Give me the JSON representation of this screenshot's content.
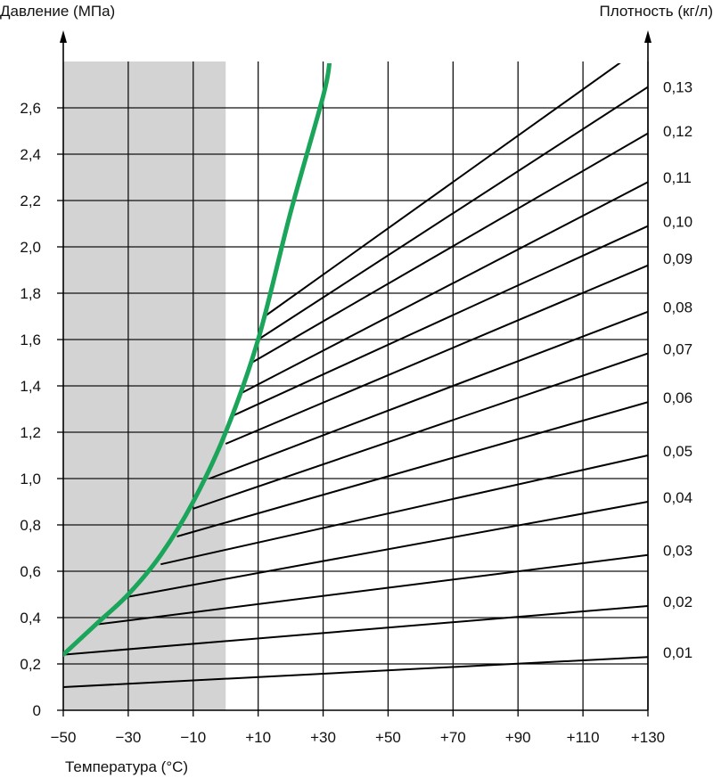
{
  "chart_data": {
    "type": "line",
    "ylabel": "Давление (МПа)",
    "y2label": "Плотность (кг/л)",
    "xlabel": "Температура (°C)",
    "xlim": [
      -50,
      130
    ],
    "ylim": [
      0,
      2.8
    ],
    "x_ticks": [
      "−50",
      "−30",
      "−10",
      "+10",
      "+30",
      "+50",
      "+70",
      "+90",
      "+110",
      "+130"
    ],
    "x_tick_values": [
      -50,
      -30,
      -10,
      10,
      30,
      50,
      70,
      90,
      110,
      130
    ],
    "y_ticks": [
      "0",
      "0,2",
      "0,4",
      "0,6",
      "0,8",
      "1,0",
      "1,2",
      "1,4",
      "1,6",
      "1,8",
      "2,0",
      "2,2",
      "2,4",
      "2,6"
    ],
    "y_tick_values": [
      0,
      0.2,
      0.4,
      0.6,
      0.8,
      1.0,
      1.2,
      1.4,
      1.6,
      1.8,
      2.0,
      2.2,
      2.4,
      2.6
    ],
    "grid": true,
    "shaded_region": {
      "x": [
        -50,
        0
      ],
      "color": "#d3d3d3"
    },
    "saturation_curve": {
      "color": "#1aa55a",
      "x": [
        -50,
        -40,
        -30,
        -20,
        -10,
        0,
        10,
        20,
        30,
        32
      ],
      "y": [
        0.24,
        0.37,
        0.5,
        0.67,
        0.9,
        1.2,
        1.6,
        2.15,
        2.65,
        2.8
      ]
    },
    "density_lines": [
      {
        "density": "0,01",
        "start": [
          -50,
          0.1
        ],
        "end": [
          130,
          0.23
        ]
      },
      {
        "density": "0,02",
        "start": [
          -50,
          0.24
        ],
        "end": [
          130,
          0.45
        ]
      },
      {
        "density": "0,03",
        "start": [
          -40,
          0.37
        ],
        "end": [
          130,
          0.67
        ]
      },
      {
        "density": "0,04",
        "start": [
          -30,
          0.49
        ],
        "end": [
          130,
          0.9
        ]
      },
      {
        "density": "0,05",
        "start": [
          -20,
          0.63
        ],
        "end": [
          130,
          1.1
        ]
      },
      {
        "density": "0,06",
        "start": [
          -15,
          0.75
        ],
        "end": [
          130,
          1.33
        ]
      },
      {
        "density": "0,07",
        "start": [
          -10,
          0.87
        ],
        "end": [
          130,
          1.54
        ]
      },
      {
        "density": "0,08",
        "start": [
          -5,
          1.0
        ],
        "end": [
          130,
          1.72
        ]
      },
      {
        "density": "0,09",
        "start": [
          0,
          1.15
        ],
        "end": [
          130,
          1.92
        ]
      },
      {
        "density": "0,10",
        "start": [
          2,
          1.27
        ],
        "end": [
          130,
          2.09
        ]
      },
      {
        "density": "0,11",
        "start": [
          5,
          1.37
        ],
        "end": [
          130,
          2.28
        ]
      },
      {
        "density": "0,12",
        "start": [
          8,
          1.5
        ],
        "end": [
          130,
          2.49
        ]
      },
      {
        "density": "0,13",
        "start": [
          10,
          1.6
        ],
        "end": [
          130,
          2.69
        ]
      },
      {
        "density": "",
        "start": [
          12,
          1.7
        ],
        "end": [
          122,
          2.8
        ]
      }
    ],
    "right_labels": [
      {
        "text": "0,13",
        "y": 2.69
      },
      {
        "text": "0,12",
        "y": 2.5
      },
      {
        "text": "0,11",
        "y": 2.3
      },
      {
        "text": "0,10",
        "y": 2.11
      },
      {
        "text": "0,09",
        "y": 1.95
      },
      {
        "text": "0,08",
        "y": 1.74
      },
      {
        "text": "0,07",
        "y": 1.56
      },
      {
        "text": "0,06",
        "y": 1.35
      },
      {
        "text": "0,05",
        "y": 1.12
      },
      {
        "text": "0,04",
        "y": 0.92
      },
      {
        "text": "0,03",
        "y": 0.69
      },
      {
        "text": "0,02",
        "y": 0.47
      },
      {
        "text": "0,01",
        "y": 0.25
      }
    ]
  }
}
